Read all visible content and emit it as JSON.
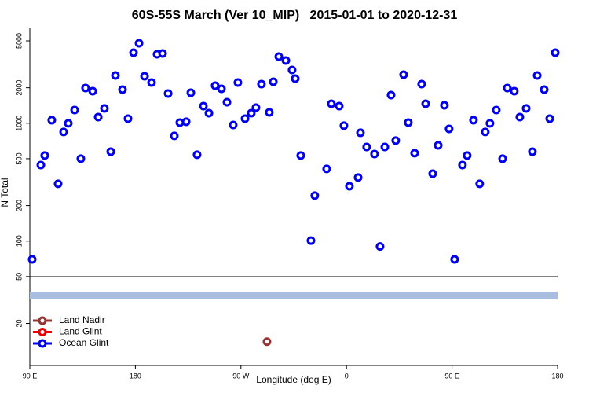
{
  "chart_data": {
    "type": "scatter",
    "title": "60S-55S March (Ver 10_MIP)   2015-01-01 to 2020-12-31",
    "x_label": "Longitude (deg E)",
    "y_label": "N Total",
    "log_y": true,
    "legend": "lower left",
    "xlim": [
      90,
      540
    ],
    "ylim": [
      8.8,
      6490
    ],
    "xticks": [
      {
        "value": 90,
        "label": "90 E"
      },
      180,
      {
        "value": 270,
        "label": "90 W"
      },
      {
        "value": 360,
        "label": "0"
      },
      {
        "value": 450,
        "label": "90 E"
      },
      {
        "value": 540,
        "label": "180"
      }
    ],
    "yticks": [
      20,
      50,
      100,
      200,
      500,
      1000,
      2000,
      5000
    ],
    "series": [
      {
        "name": "Land Nadir",
        "color": "#993333",
        "x": [
          292.2
        ],
        "values": [
          14
        ]
      },
      {
        "name": "Land Glint",
        "color": "#ee0000",
        "x": [],
        "values": []
      },
      {
        "name": "Ocean Glint",
        "color": "#0000ee",
        "x": [
          92,
          99.4,
          102.7,
          108.7,
          114.1,
          118.8,
          122.8,
          128.2,
          133.5,
          137.5,
          143.6,
          148.3,
          153.6,
          159,
          163,
          169,
          173.7,
          178.4,
          183.1,
          187.8,
          193.8,
          198.5,
          203.2,
          207.9,
          213.2,
          217.9,
          223.3,
          227.3,
          232.6,
          238,
          242.7,
          248,
          253.4,
          258.1,
          263.4,
          267.4,
          273.5,
          278.8,
          282.8,
          287.5,
          294.2,
          297.6,
          302.3,
          308.3,
          313.6,
          316.3,
          321,
          329.7,
          333,
          343.1,
          347.1,
          353.8,
          357.8,
          362.5,
          369.9,
          371.9,
          377.2,
          383.9,
          388.6,
          392.7,
          398,
          402,
          408.7,
          412.7,
          418.1,
          424.1,
          427.5,
          433.5,
          438.2,
          443.5,
          447.5,
          452.2,
          458.9,
          462.9,
          468.3,
          473.6,
          478.3,
          482.3,
          487.7,
          493.1,
          497.1,
          503.1,
          507.8,
          513.2,
          518.5,
          522.6,
          528.6,
          533.3,
          538
        ],
        "values": [
          70,
          442,
          532,
          1061,
          306,
          843,
          998,
          1295,
          500,
          1991,
          1872,
          1128,
          1336,
          574,
          2545,
          1930,
          1094,
          3972,
          4775,
          2506,
          2216,
          3850,
          3912,
          1788,
          781,
          1013,
          1029,
          1815,
          540,
          1398,
          1218,
          2085,
          1960,
          1510,
          967,
          2216,
          1094,
          1218,
          1356,
          2150,
          1237,
          2251,
          3678,
          3405,
          2833,
          2393,
          532,
          101,
          243,
          410,
          1463,
          1398,
          953,
          292,
          346,
          830,
          629,
          548,
          90,
          629,
          1734,
          712,
          2584,
          1013,
          557,
          2150,
          1463,
          373,
          649,
          1420,
          896,
          70,
          442,
          532,
          1061,
          306,
          843,
          998,
          1295,
          500,
          1991,
          1872,
          1128,
          1336,
          574,
          2545,
          1930,
          1094,
          3972
        ]
      }
    ]
  }
}
